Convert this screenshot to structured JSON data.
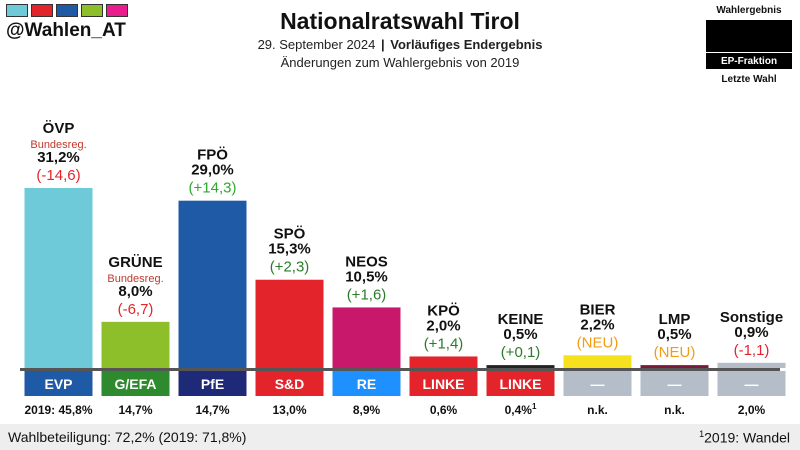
{
  "header": {
    "handle": "@Wahlen_AT",
    "title": "Nationalratswahl Tirol",
    "date": "29. September 2024",
    "status": "Vorläufiges Endergebnis",
    "changes_note": "Änderungen zum Wahlergebnis von 2019"
  },
  "header_flag_colors": [
    "#6ecad8",
    "#e3242b",
    "#1f5aa6",
    "#8cbf2a",
    "#e91e8c"
  ],
  "legend": {
    "top_label": "Wahlergebnis",
    "mid_label": "EP-Fraktion",
    "bottom_label": "Letzte Wahl"
  },
  "chart_data": {
    "type": "bar",
    "ylim": [
      0,
      31.2
    ],
    "categories": [
      "ÖVP",
      "GRÜNE",
      "FPÖ",
      "SPÖ",
      "NEOS",
      "KPÖ",
      "KEINE",
      "BIER",
      "LMP",
      "Sonstige"
    ],
    "values": [
      31.2,
      8.0,
      29.0,
      15.3,
      10.5,
      2.0,
      0.5,
      2.2,
      0.5,
      0.9
    ],
    "value_labels": [
      "31,2%",
      "8,0%",
      "29,0%",
      "15,3%",
      "10,5%",
      "2,0%",
      "0,5%",
      "2,2%",
      "0,5%",
      "0,9%"
    ],
    "changes": [
      "(-14,6)",
      "(-6,7)",
      "(+14,3)",
      "(+2,3)",
      "(+1,6)",
      "(+1,4)",
      "(+0,1)",
      "(NEU)",
      "(NEU)",
      "(-1,1)"
    ],
    "change_colors": [
      "#e3242b",
      "#e3242b",
      "#2fa82f",
      "#2d7a2d",
      "#2d7a2d",
      "#2d7a2d",
      "#2d7a2d",
      "#f39c12",
      "#f39c12",
      "#e3242b"
    ],
    "notes": [
      "Bundesreg.",
      "Bundesreg.",
      "",
      "",
      "",
      "",
      "",
      "",
      "",
      ""
    ],
    "colors": [
      "#6ecad8",
      "#8cbf2a",
      "#1f5aa6",
      "#e3242b",
      "#c8186c",
      "#e3242b",
      "#222222",
      "#f5e11e",
      "#7a1a3a",
      "#b5bdc9"
    ],
    "ep_groups": [
      "EVP",
      "G/EFA",
      "PfE",
      "S&D",
      "RE",
      "LINKE",
      "LINKE",
      "—",
      "—",
      "—"
    ],
    "ep_colors": [
      "#1f5aa6",
      "#2d8a2d",
      "#1e2a78",
      "#e3242b",
      "#1e90ff",
      "#e3242b",
      "#e3242b",
      "#b5bdc9",
      "#b5bdc9",
      "#b5bdc9"
    ],
    "previous": [
      "2019: 45,8%",
      "14,7%",
      "14,7%",
      "13,0%",
      "8,9%",
      "0,6%",
      "0,4%",
      "n.k.",
      "n.k.",
      "2,0%"
    ],
    "previous_footnote": [
      "",
      "",
      "",
      "",
      "",
      "",
      "1",
      "",
      "",
      ""
    ]
  },
  "footer": {
    "turnout": "Wahlbeteiligung: 72,2% (2019: 71,8%)",
    "note_mark": "1",
    "note": "2019: Wandel"
  }
}
